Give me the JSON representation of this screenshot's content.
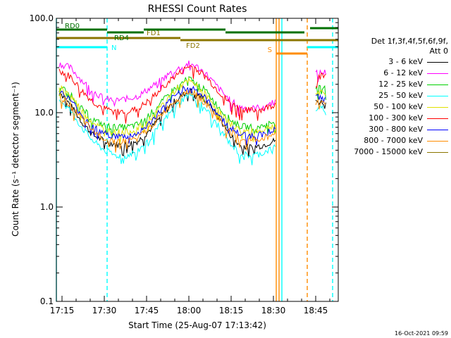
{
  "chart_data": {
    "type": "line",
    "title": "RHESSI Count Rates",
    "xlabel": "Start Time (25-Aug-07 17:13:42)",
    "ylabel": "Count Rate (s⁻¹ detector segment⁻¹)",
    "y_scale": "log",
    "ylim": [
      0.1,
      100.0
    ],
    "y_ticks": [
      "0.1",
      "1.0",
      "10.0",
      "100.0"
    ],
    "x_range": [
      "17:13",
      "18:53"
    ],
    "x_ticks": [
      "17:15",
      "17:30",
      "17:45",
      "18:00",
      "18:15",
      "18:30",
      "18:45"
    ],
    "x": [
      "17:14",
      "17:18",
      "17:22",
      "17:26",
      "17:30",
      "17:34",
      "17:38",
      "17:42",
      "17:46",
      "17:50",
      "17:54",
      "17:58",
      "18:00",
      "18:02",
      "18:06",
      "18:10",
      "18:14",
      "18:18",
      "18:22",
      "18:26",
      "18:30",
      "18:31",
      "18:42",
      "18:45",
      "18:49"
    ],
    "series": [
      {
        "name": "3 - 6 keV",
        "color": "#000000",
        "values": [
          17,
          12,
          8.0,
          5.8,
          5.0,
          4.6,
          4.6,
          5.0,
          6.5,
          9.0,
          12.5,
          15.5,
          17,
          16.5,
          13.5,
          9.5,
          6.2,
          4.5,
          4.3,
          4.5,
          5.0,
          5.2,
          null,
          13,
          13
        ]
      },
      {
        "name": "6 - 12 keV",
        "color": "#ff00ff",
        "values": [
          33,
          30,
          22,
          17,
          14,
          13.5,
          14,
          15,
          18,
          22,
          27,
          31,
          33,
          32,
          26,
          19,
          14,
          11.5,
          11,
          11.5,
          13,
          13.5,
          null,
          26,
          27
        ]
      },
      {
        "name": "12 - 25 keV",
        "color": "#00d000",
        "values": [
          19,
          16,
          11,
          8.5,
          7.3,
          7.0,
          7.0,
          7.5,
          9.5,
          12.5,
          17,
          21,
          23,
          21,
          17,
          12,
          8.8,
          7.2,
          7.0,
          7.2,
          8.0,
          8.3,
          null,
          18,
          18
        ]
      },
      {
        "name": "25 - 50 keV",
        "color": "#00ffff",
        "values": [
          14,
          10.5,
          7,
          5,
          4.0,
          3.5,
          3.5,
          4.0,
          5.2,
          7.5,
          10.5,
          14,
          15.5,
          14.5,
          11,
          7.5,
          5.0,
          3.7,
          3.5,
          3.7,
          4.3,
          4.5,
          null,
          11,
          11
        ]
      },
      {
        "name": "50 - 100 keV",
        "color": "#e0e000",
        "values": [
          19,
          15.5,
          10.5,
          7.8,
          6.6,
          6.2,
          6.2,
          6.8,
          8.5,
          11.5,
          16,
          20,
          21.5,
          20,
          15.5,
          11,
          8.0,
          6.5,
          6.3,
          6.5,
          7.3,
          7.6,
          null,
          16,
          16
        ]
      },
      {
        "name": "100 - 300 keV",
        "color": "#ff0000",
        "values": [
          28,
          24,
          17,
          13,
          11,
          10.2,
          10.2,
          11,
          13.5,
          17.5,
          23,
          28,
          31,
          30,
          24,
          17.5,
          13,
          11,
          10.5,
          10.8,
          12,
          12.5,
          null,
          24,
          25
        ]
      },
      {
        "name": "300 - 800 keV",
        "color": "#0000ff",
        "values": [
          17,
          13.5,
          9.5,
          7.0,
          6.0,
          5.6,
          5.6,
          6.0,
          7.6,
          10.5,
          14,
          18,
          19,
          18,
          14,
          10,
          7.2,
          5.9,
          5.7,
          5.9,
          6.6,
          6.9,
          null,
          14.5,
          14.5
        ]
      },
      {
        "name": "800 - 7000 keV",
        "color": "#ff8c00",
        "values": [
          15,
          12,
          8.5,
          6.3,
          5.4,
          5.0,
          5.0,
          5.4,
          6.8,
          9.3,
          12.5,
          16,
          17,
          16,
          12.5,
          9.0,
          6.5,
          5.3,
          5.1,
          5.3,
          5.9,
          6.1,
          null,
          13,
          13
        ]
      },
      {
        "name": "7000 - 15000 keV",
        "color": "#8b7500",
        "values": [
          null,
          null,
          null,
          null,
          null,
          null,
          null,
          null,
          null,
          null,
          null,
          null,
          null,
          null,
          null,
          null,
          null,
          null,
          null,
          null,
          null,
          null,
          null,
          null,
          null
        ]
      }
    ],
    "legend_header": [
      "Det 1f,3f,4f,5f,6f,9f,",
      "Att 0"
    ],
    "state_bars": [
      {
        "label": "N",
        "color": "#00ffff",
        "start": "17:13",
        "end": "17:31",
        "y": 67
      },
      {
        "label": "",
        "color": "#00ffff",
        "start": "18:42",
        "end": "18:53",
        "y": 67
      },
      {
        "label": "S",
        "color": "#ff8c00",
        "start": "18:31",
        "end": "18:42",
        "y": 76
      },
      {
        "label": "FD1",
        "color": "#8b7500",
        "start": "17:13",
        "end": "17:57",
        "y": 54
      },
      {
        "label": "FD2",
        "color": "#8b7500",
        "start": "17:57",
        "end": "18:53",
        "y": 57
      },
      {
        "label": "RD0",
        "color": "#007000",
        "start": "17:13",
        "end": "17:31",
        "y": 42
      },
      {
        "label": "",
        "color": "#007000",
        "start": "17:44",
        "end": "18:13",
        "y": 42
      },
      {
        "label": "",
        "color": "#007000",
        "start": "18:13",
        "end": "18:41",
        "y": 46
      },
      {
        "label": "RD4",
        "color": "#007000",
        "start": "17:31",
        "end": "17:44",
        "y": 46
      },
      {
        "label": "",
        "color": "#007000",
        "start": "18:43",
        "end": "18:53",
        "y": 40
      }
    ],
    "vertical_markers": [
      {
        "x": "17:13",
        "color": "#00ffff",
        "style": "solid"
      },
      {
        "x": "17:31",
        "color": "#00ffff",
        "style": "dashed"
      },
      {
        "x": "18:31",
        "color": "#ff8c00",
        "style": "solid"
      },
      {
        "x": "18:32",
        "color": "#ff8c00",
        "style": "solid"
      },
      {
        "x": "18:33",
        "color": "#00ffff",
        "style": "solid"
      },
      {
        "x": "18:42",
        "color": "#ff8c00",
        "style": "dashed"
      },
      {
        "x": "18:51",
        "color": "#00ffff",
        "style": "dashed"
      }
    ],
    "grid": false,
    "legend_position": "right"
  },
  "footer": {
    "stamp": "16-Oct-2021 09:59"
  }
}
